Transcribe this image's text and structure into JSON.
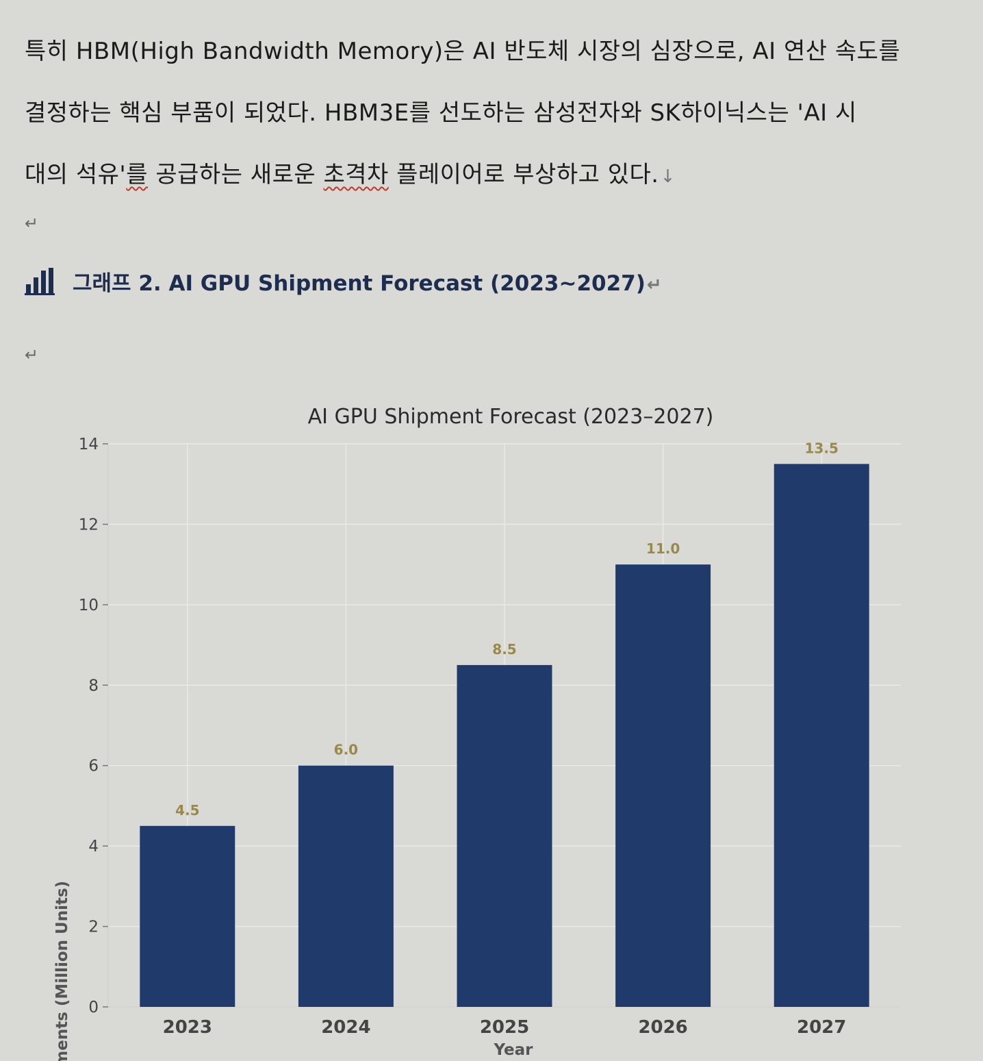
{
  "paragraph": {
    "line1": "특히 HBM(High Bandwidth Memory)은 AI 반도체 시장의 심장으로, AI 연산 속도를",
    "line2": "결정하는 핵심 부품이 되었다. HBM3E를 선도하는 삼성전자와 SK하이닉스는 'AI 시",
    "line3_a": "대의 석유'",
    "line3_b": "를",
    "line3_c": " 공급하는 새로운 ",
    "line3_d": "초격차",
    "line3_e": " 플레이어로 부상하고 있다.",
    "paragraph_mark": "↓",
    "empty_mark": "↵"
  },
  "graph_heading": {
    "icon": "bar-chart-icon",
    "text": "그래프 2. AI GPU Shipment Forecast (2023~2027)",
    "end_mark": "↵"
  },
  "colors": {
    "bar": "#1f3a6b",
    "heading": "#1d2d4f",
    "value_label": "#9a8a4a"
  },
  "chart_data": {
    "type": "bar",
    "title": "AI GPU Shipment Forecast (2023–2027)",
    "xlabel": "Year",
    "ylabel": "Shipments (Million Units)",
    "categories": [
      "2023",
      "2024",
      "2025",
      "2026",
      "2027"
    ],
    "values": [
      4.5,
      6.0,
      8.5,
      11.0,
      13.5
    ],
    "value_labels": [
      "4.5",
      "6.0",
      "8.5",
      "11.0",
      "13.5"
    ],
    "ylim": [
      0,
      14
    ],
    "yticks": [
      0,
      2,
      4,
      6,
      8,
      10,
      12,
      14
    ],
    "grid": true,
    "legend": "none"
  }
}
